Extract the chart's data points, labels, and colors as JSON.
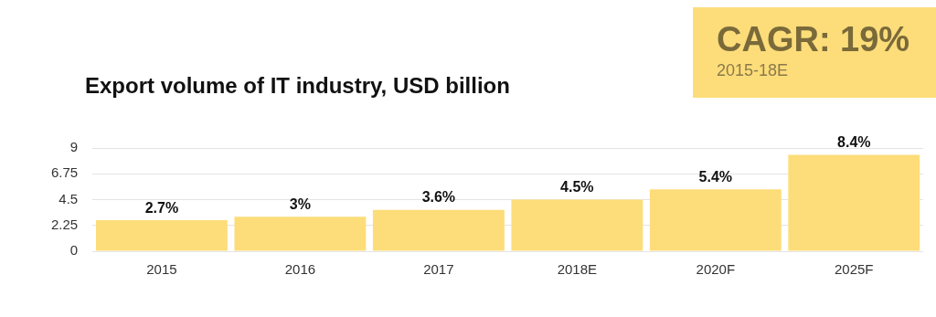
{
  "chart_data": {
    "type": "bar",
    "title": "Export volume of IT industry, USD billion",
    "categories": [
      "2015",
      "2016",
      "2017",
      "2018E",
      "2020F",
      "2025F"
    ],
    "values": [
      2.7,
      3,
      3.6,
      4.5,
      5.4,
      8.4
    ],
    "value_labels": [
      "2.7%",
      "3%",
      "3.6%",
      "4.5%",
      "5.4%",
      "8.4%"
    ],
    "color": "#fddd7a",
    "ylim": [
      0,
      9
    ],
    "yticks": [
      0,
      2.25,
      4.5,
      6.75,
      9
    ],
    "grid": "y",
    "legend": false,
    "annotations": [
      "CAGR: 19%",
      "2015-18E"
    ]
  }
}
